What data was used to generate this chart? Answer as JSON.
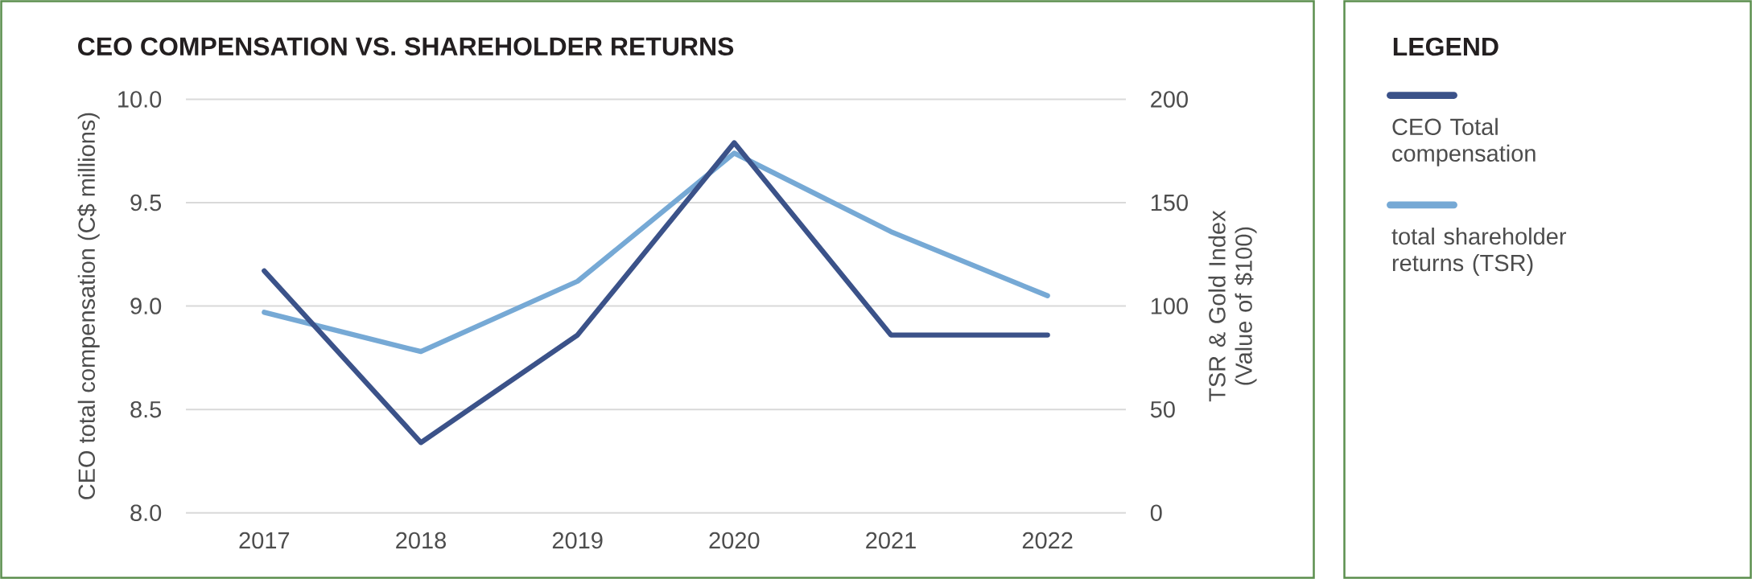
{
  "chart_data": {
    "type": "line",
    "title": "CEO COMPENSATION VS. SHAREHOLDER RETURNS",
    "ylabel": "CEO total compensation (C$ millions)",
    "y2label": "TSR & Gold Index (Value of $100)",
    "legend_title": "LEGEND",
    "categories": [
      "2017",
      "2018",
      "2019",
      "2020",
      "2021",
      "2022"
    ],
    "series": [
      {
        "name": "CEO Total compensation",
        "color": "#3b5289",
        "values": [
          9.17,
          8.34,
          8.86,
          9.79,
          8.86,
          8.86
        ]
      },
      {
        "name": "total shareholder returns (TSR)",
        "color": "#76a9d5",
        "axis": "y2",
        "values": [
          97,
          78,
          112,
          174,
          136,
          105
        ]
      }
    ],
    "ylim": [
      8,
      10
    ],
    "yticks": [
      {
        "value": 8,
        "label": "8.0"
      },
      {
        "value": 8.5,
        "label": "8.5"
      },
      {
        "value": 9,
        "label": "9.0"
      },
      {
        "value": 9.5,
        "label": "9.5"
      },
      {
        "value": 10,
        "label": "10.0"
      }
    ],
    "y2lim": [
      0,
      200
    ],
    "y2ticks": [
      0,
      50,
      100,
      150,
      200
    ],
    "grid": "y",
    "legend": "right",
    "line_style": "solid"
  }
}
